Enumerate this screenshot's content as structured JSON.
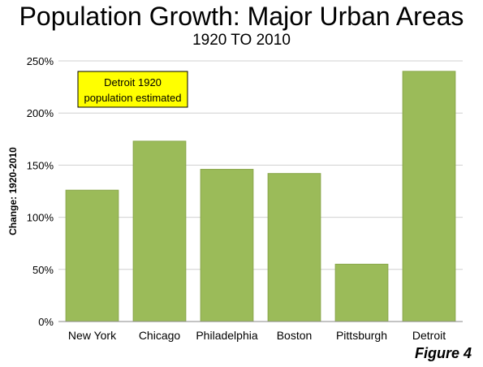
{
  "title": "Population Growth: Major Urban Areas",
  "subtitle": "1920 TO 2010",
  "figure_label": "Figure 4",
  "colors": {
    "bar": "#9bbb59",
    "bar_edge": "#8aa84c",
    "grid": "#d0d0d0",
    "annotation_bg": "#ffff00"
  },
  "chart_data": {
    "type": "bar",
    "title": "Population Growth: Major Urban Areas",
    "subtitle": "1920 TO 2010",
    "xlabel": "",
    "ylabel": "Change: 1920-2010",
    "categories": [
      "New York",
      "Chicago",
      "Philadelphia",
      "Boston",
      "Pittsburgh",
      "Detroit"
    ],
    "values": [
      126,
      173,
      146,
      142,
      55,
      240
    ],
    "ylim": [
      0,
      250
    ],
    "yticks": [
      0,
      50,
      100,
      150,
      200,
      250
    ],
    "ytick_labels": [
      "0%",
      "50%",
      "100%",
      "150%",
      "200%",
      "250%"
    ],
    "grid": true,
    "annotation": "Detroit 1920\npopulation estimated",
    "annotation_lines": [
      "Detroit 1920",
      "population estimated"
    ]
  }
}
